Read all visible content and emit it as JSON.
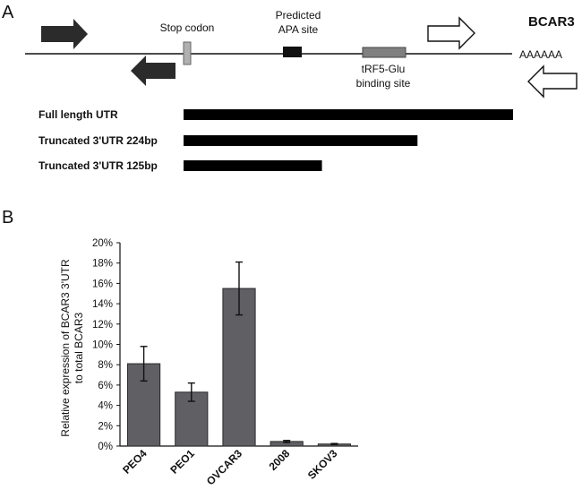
{
  "panel_a": {
    "letter": "A",
    "gene_name": "BCAR3",
    "poly_a": "AAAAAA",
    "stop_codon_label": "Stop codon",
    "apa_label_line1": "Predicted",
    "apa_label_line2": "APA site",
    "trf_label_line1": "tRF5-Glu",
    "trf_label_line2": "binding site",
    "constructs": [
      {
        "label": "Full length UTR",
        "fraction": 1.0
      },
      {
        "label": "Truncated 3'UTR  224bp",
        "fraction": 0.71
      },
      {
        "label": "Truncated 3'UTR  125bp",
        "fraction": 0.42
      }
    ]
  },
  "panel_b": {
    "letter": "B"
  },
  "chart_data": {
    "type": "bar",
    "categories": [
      "PEO4",
      "PEO1",
      "OVCAR3",
      "2008",
      "SKOV3"
    ],
    "values": [
      8.1,
      5.3,
      15.5,
      0.45,
      0.2
    ],
    "errors": [
      1.7,
      0.9,
      2.6,
      0.1,
      0.05
    ],
    "ylabel_line1": "Relative expression of BCAR3 3'UTR",
    "ylabel_line2": "to total BCAR3",
    "xlabel": "",
    "ylim": [
      0,
      20
    ],
    "yticks": [
      "0%",
      "2%",
      "4%",
      "6%",
      "8%",
      "10%",
      "12%",
      "14%",
      "16%",
      "18%",
      "20%"
    ],
    "unit": "%",
    "bar_color": "#5f5f64",
    "grid": false
  }
}
